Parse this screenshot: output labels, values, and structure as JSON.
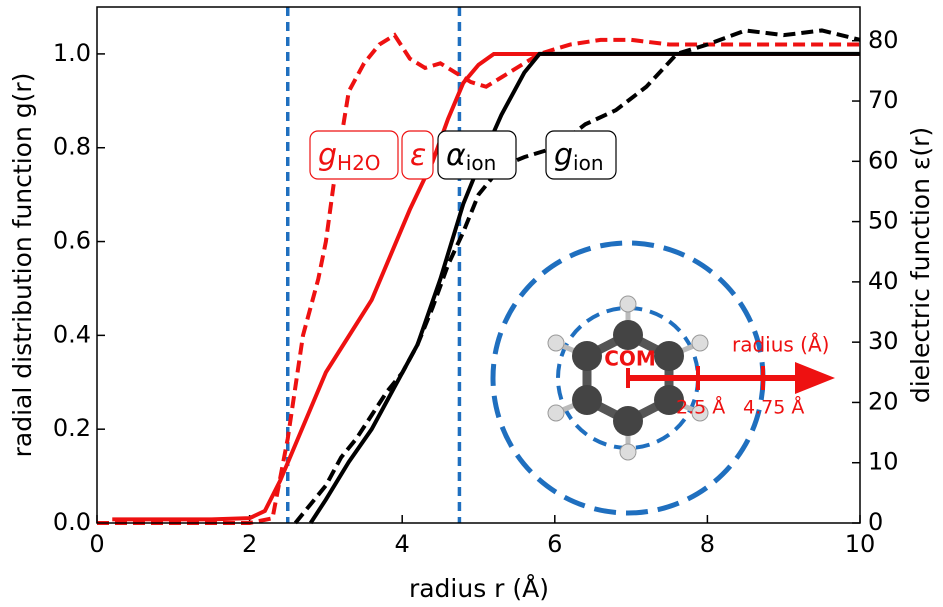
{
  "chart_data": {
    "type": "line",
    "xlabel": "radius r (Å)",
    "ylabel": "radial distribution function g(r)",
    "y2label": "dielectric function ε(r)",
    "xlim": [
      0,
      10
    ],
    "xticks": [
      0,
      2,
      4,
      6,
      8,
      10
    ],
    "ylim": [
      0,
      1.1
    ],
    "yticks": [
      {
        "value": 0,
        "label": "0.0"
      },
      {
        "value": 0.2,
        "label": "0.2"
      },
      {
        "value": 0.4,
        "label": "0.4"
      },
      {
        "value": 0.6,
        "label": "0.6"
      },
      {
        "value": 0.8,
        "label": "0.8"
      },
      {
        "value": 1.0,
        "label": "1.0"
      }
    ],
    "y2lim": [
      0,
      85.6
    ],
    "y2ticks": [
      0,
      10,
      20,
      30,
      40,
      50,
      60,
      70,
      80
    ],
    "vlines": [
      2.5,
      4.75
    ],
    "vline_color": "#1f6fbf",
    "series": [
      {
        "name": "g",
        "subscript": "H2O",
        "color": "#ee1111",
        "dash": true,
        "x": [
          0,
          2.0,
          2.3,
          2.5,
          2.7,
          2.9,
          3.0,
          3.1,
          3.2,
          3.3,
          3.5,
          3.7,
          3.9,
          4.1,
          4.3,
          4.5,
          4.7,
          4.9,
          5.1,
          5.3,
          5.5,
          5.8,
          6.2,
          6.6,
          7.0,
          7.5,
          8.0,
          9.0,
          10
        ],
        "values": [
          0,
          0,
          0.01,
          0.18,
          0.4,
          0.52,
          0.6,
          0.72,
          0.82,
          0.92,
          0.98,
          1.02,
          1.04,
          0.99,
          0.97,
          0.98,
          0.96,
          0.94,
          0.93,
          0.95,
          0.97,
          1.0,
          1.02,
          1.03,
          1.03,
          1.02,
          1.02,
          1.02,
          1.02
        ]
      },
      {
        "name": "ε",
        "subscript": "",
        "color": "#ee1111",
        "dash": false,
        "axis": "y2",
        "x": [
          0.2,
          1.5,
          2.0,
          2.2,
          2.4,
          2.6,
          2.8,
          3.0,
          3.3,
          3.6,
          3.9,
          4.1,
          4.4,
          4.6,
          4.8,
          5.0,
          5.2,
          5.4,
          10
        ],
        "values": [
          0.6,
          0.6,
          0.8,
          2,
          7,
          13,
          19,
          25,
          31,
          37,
          46,
          52,
          60,
          67,
          73,
          76,
          77.8,
          77.8,
          77.8
        ]
      },
      {
        "name": "α",
        "subscript": "ion",
        "color": "#000000",
        "dash": false,
        "x": [
          2.8,
          3.0,
          3.3,
          3.6,
          3.9,
          4.2,
          4.5,
          4.8,
          5.0,
          5.3,
          5.6,
          5.8,
          10
        ],
        "values": [
          0,
          0.05,
          0.13,
          0.2,
          0.29,
          0.38,
          0.52,
          0.68,
          0.76,
          0.87,
          0.96,
          1.0,
          1.0
        ]
      },
      {
        "name": "g",
        "subscript": "ion",
        "color": "#000000",
        "dash": true,
        "x": [
          2.6,
          2.8,
          3.0,
          3.2,
          3.4,
          3.6,
          3.8,
          4.0,
          4.2,
          4.4,
          4.6,
          4.8,
          5.0,
          5.3,
          5.6,
          6.0,
          6.4,
          6.8,
          7.2,
          7.6,
          8.0,
          8.5,
          9.0,
          9.5,
          10
        ],
        "values": [
          0,
          0.04,
          0.08,
          0.14,
          0.18,
          0.23,
          0.28,
          0.32,
          0.38,
          0.46,
          0.55,
          0.62,
          0.7,
          0.76,
          0.78,
          0.8,
          0.85,
          0.88,
          0.93,
          1.0,
          1.02,
          1.05,
          1.04,
          1.05,
          1.03
        ]
      }
    ]
  },
  "inset": {
    "com": "COM",
    "radius_label": "radius (Å)",
    "inner_label": "2.5 Å",
    "outer_label": "4.75 Å"
  }
}
